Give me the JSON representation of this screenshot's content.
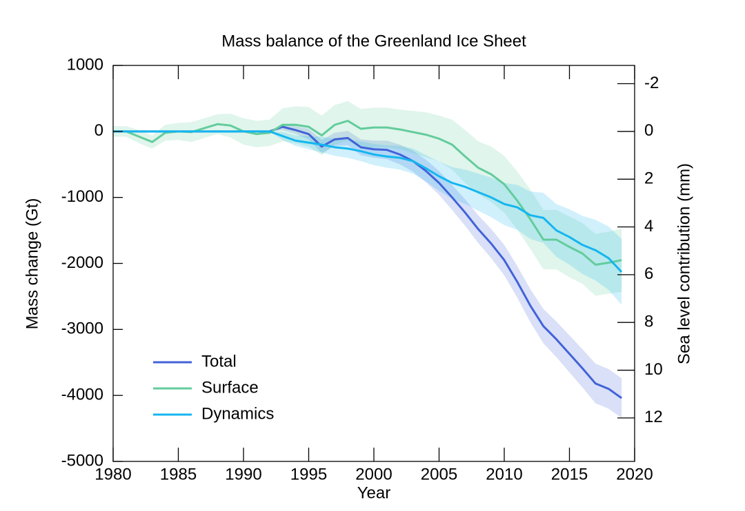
{
  "chart_data": {
    "type": "line",
    "title": "Mass balance of the Greenland Ice Sheet",
    "xlabel": "Year",
    "ylabel": "Mass change (Gt)",
    "y2label": "Sea level contribution (mm)",
    "x": [
      1980,
      1981,
      1982,
      1983,
      1984,
      1985,
      1986,
      1987,
      1988,
      1989,
      1990,
      1991,
      1992,
      1993,
      1994,
      1995,
      1996,
      1997,
      1998,
      1999,
      2000,
      2001,
      2002,
      2003,
      2004,
      2005,
      2006,
      2007,
      2008,
      2009,
      2010,
      2011,
      2012,
      2013,
      2014,
      2015,
      2016,
      2017,
      2018,
      2019
    ],
    "xlim": [
      1980,
      2020
    ],
    "xticks": [
      1980,
      1985,
      1990,
      1995,
      2000,
      2005,
      2010,
      2015,
      2020
    ],
    "ylim": [
      -5000,
      1000
    ],
    "yticks": [
      -5000,
      -4000,
      -3000,
      -2000,
      -1000,
      0,
      1000
    ],
    "y2lim": [
      13.82,
      -2.764
    ],
    "y2ticks": [
      -2,
      0,
      2,
      4,
      6,
      8,
      10,
      12
    ],
    "legend": "lower left",
    "series": [
      {
        "name": "Total",
        "color": "#4262d8",
        "values": [
          0,
          0,
          0,
          0,
          0,
          0,
          0,
          0,
          0,
          0,
          0,
          0,
          0,
          70,
          20,
          -40,
          -230,
          -120,
          -100,
          -240,
          -270,
          -280,
          -350,
          -450,
          -600,
          -780,
          -1000,
          -1230,
          -1480,
          -1700,
          -1950,
          -2280,
          -2640,
          -2950,
          -3150,
          -3370,
          -3590,
          -3820,
          -3900,
          -4040
        ],
        "errors": [
          0,
          0,
          0,
          0,
          0,
          0,
          0,
          0,
          0,
          0,
          0,
          0,
          0,
          50,
          60,
          80,
          100,
          100,
          110,
          120,
          130,
          140,
          150,
          160,
          170,
          180,
          190,
          200,
          210,
          220,
          230,
          240,
          250,
          260,
          270,
          280,
          290,
          300,
          300,
          300
        ]
      },
      {
        "name": "Surface",
        "color": "#62cc9c",
        "values": [
          0,
          0,
          -80,
          -160,
          -20,
          0,
          -10,
          50,
          110,
          90,
          0,
          -40,
          -20,
          100,
          100,
          70,
          -60,
          100,
          160,
          40,
          60,
          60,
          30,
          -10,
          -50,
          -110,
          -200,
          -380,
          -550,
          -650,
          -800,
          -1050,
          -1330,
          -1640,
          -1640,
          -1750,
          -1850,
          -2020,
          -1990,
          -1950
        ],
        "errors": [
          80,
          80,
          100,
          100,
          120,
          130,
          150,
          150,
          150,
          180,
          200,
          200,
          200,
          250,
          280,
          300,
          300,
          300,
          300,
          300,
          300,
          300,
          300,
          320,
          340,
          350,
          380,
          400,
          400,
          420,
          430,
          440,
          450,
          450,
          450,
          460,
          460,
          470,
          470,
          480
        ]
      },
      {
        "name": "Dynamics",
        "color": "#14b6ef",
        "values": [
          0,
          0,
          0,
          0,
          0,
          0,
          0,
          0,
          0,
          0,
          0,
          0,
          0,
          -70,
          -140,
          -170,
          -200,
          -240,
          -260,
          -300,
          -350,
          -380,
          -400,
          -450,
          -560,
          -680,
          -780,
          -840,
          -920,
          -1000,
          -1100,
          -1150,
          -1270,
          -1310,
          -1500,
          -1600,
          -1720,
          -1800,
          -1920,
          -2130
        ],
        "errors": [
          0,
          0,
          0,
          0,
          0,
          0,
          0,
          0,
          0,
          0,
          0,
          0,
          0,
          60,
          80,
          100,
          120,
          130,
          140,
          150,
          160,
          170,
          180,
          190,
          200,
          220,
          240,
          260,
          280,
          300,
          320,
          340,
          360,
          380,
          400,
          420,
          440,
          460,
          480,
          500
        ]
      }
    ]
  }
}
